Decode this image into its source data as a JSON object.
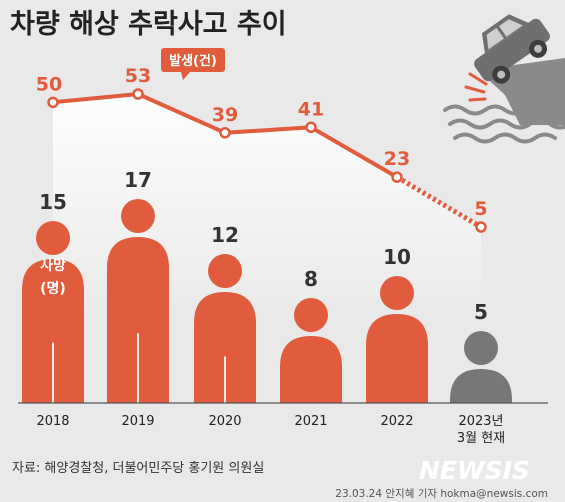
{
  "title": "차량 해상 추락사고 추이",
  "source": "자료: 해양경찰청, 더불어민주당 홍기원 의원실",
  "credit": "23.03.24 안지혜 기자 hokma@newsis.com",
  "logo": "NEWSIS",
  "colors": {
    "accent": "#e05c3c",
    "muted": "#777777",
    "background": "#e9e9e9"
  },
  "chart_data": {
    "type": "bar",
    "categories": [
      "2018",
      "2019",
      "2020",
      "2021",
      "2022",
      "2023년 3월 현재"
    ],
    "category_labels": [
      [
        "2018"
      ],
      [
        "2019"
      ],
      [
        "2020"
      ],
      [
        "2021"
      ],
      [
        "2022"
      ],
      [
        "2023년",
        "3월 현재"
      ]
    ],
    "series": [
      {
        "name": "발생(건)",
        "type": "line",
        "values": [
          50,
          53,
          39,
          41,
          23,
          5
        ]
      },
      {
        "name": "사망(명)",
        "type": "pictogram-bar",
        "values": [
          15,
          17,
          12,
          8,
          10,
          5
        ]
      }
    ],
    "line_label": "발생(건)",
    "bar_label": [
      "사망",
      "(명)"
    ],
    "partial_last": true,
    "legend": "inline"
  }
}
